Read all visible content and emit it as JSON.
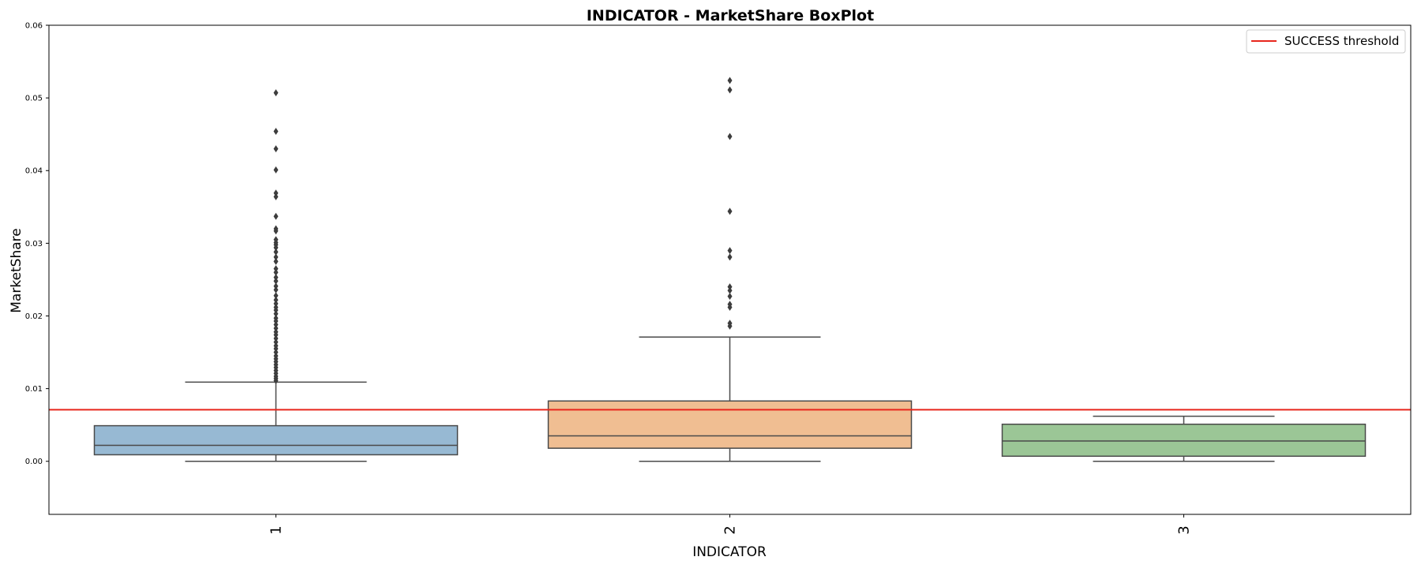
{
  "chart_data": {
    "type": "box",
    "title": "INDICATOR - MarketShare BoxPlot",
    "xlabel": "INDICATOR",
    "ylabel": "MarketShare",
    "ylim": [
      -0.0073,
      0.06
    ],
    "yticks": [
      0.0,
      0.01,
      0.02,
      0.03,
      0.04,
      0.05,
      0.06
    ],
    "ytick_labels": [
      "0.00",
      "0.01",
      "0.02",
      "0.03",
      "0.04",
      "0.05",
      "0.06"
    ],
    "grid": false,
    "legend": {
      "placement": "top-right",
      "entries": [
        "SUCCESS threshold"
      ]
    },
    "threshold": {
      "name": "SUCCESS threshold",
      "value": 0.0071,
      "color": "#e8261c"
    },
    "categories": [
      "1",
      "2",
      "3"
    ],
    "boxes": [
      {
        "category": "1",
        "whisker_low": 0.0,
        "q1": 0.0009,
        "median": 0.0022,
        "q3": 0.0049,
        "whisker_high": 0.0109,
        "color": "#97b9d3",
        "outliers": [
          0.0507,
          0.0454,
          0.043,
          0.0401,
          0.0369,
          0.0364,
          0.0337,
          0.032,
          0.0317,
          0.0305,
          0.0301,
          0.0298,
          0.0294,
          0.0288,
          0.0281,
          0.0275,
          0.0265,
          0.026,
          0.0253,
          0.0248,
          0.0241,
          0.0236,
          0.0228,
          0.0222,
          0.0217,
          0.0212,
          0.0208,
          0.0203,
          0.0197,
          0.0193,
          0.0188,
          0.0183,
          0.0178,
          0.0174,
          0.0169,
          0.0164,
          0.0159,
          0.0155,
          0.015,
          0.0145,
          0.0141,
          0.0137,
          0.0133,
          0.0129,
          0.0125,
          0.0121,
          0.0117,
          0.0114,
          0.0111
        ]
      },
      {
        "category": "2",
        "whisker_low": 0.0,
        "q1": 0.0018,
        "median": 0.0035,
        "q3": 0.0083,
        "whisker_high": 0.0171,
        "color": "#f0be92",
        "outliers": [
          0.0524,
          0.0511,
          0.0447,
          0.0344,
          0.029,
          0.0281,
          0.024,
          0.0235,
          0.0227,
          0.0216,
          0.0212,
          0.019,
          0.0186
        ]
      },
      {
        "category": "3",
        "whisker_low": 0.0,
        "q1": 0.0007,
        "median": 0.0028,
        "q3": 0.0051,
        "whisker_high": 0.0062,
        "color": "#9bc696",
        "outliers": []
      }
    ]
  }
}
